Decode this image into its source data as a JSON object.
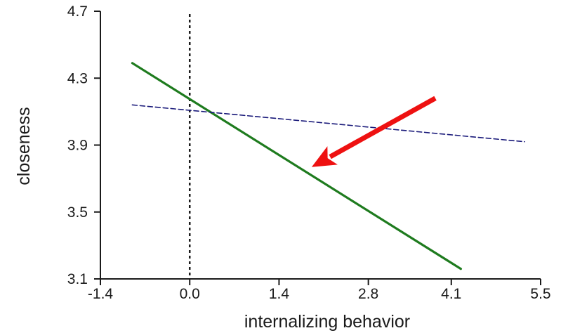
{
  "chart_data": {
    "type": "line",
    "xlabel": "internalizing behavior",
    "ylabel": "closeness",
    "xlim": [
      -1.4,
      5.5
    ],
    "ylim": [
      3.1,
      4.7
    ],
    "xticks": [
      -1.4,
      0.0,
      1.4,
      2.8,
      4.1,
      5.5
    ],
    "xtick_labels": [
      "-1.4",
      "0.0",
      "1.4",
      "2.8",
      "4.1",
      "5.5"
    ],
    "yticks": [
      3.1,
      3.5,
      3.9,
      4.3,
      4.7
    ],
    "ytick_labels": [
      "3.1",
      "3.5",
      "3.9",
      "4.3",
      "4.7"
    ],
    "grid": false,
    "series": [
      {
        "style": "solid",
        "color": "#1e7b1e",
        "x": [
          -0.9,
          4.25
        ],
        "y": [
          4.39,
          3.16
        ]
      },
      {
        "style": "dashed",
        "color": "#1a1a7a",
        "x": [
          -0.9,
          5.25
        ],
        "y": [
          4.14,
          3.92
        ]
      }
    ],
    "reference_line": {
      "x": 0.0,
      "style": "dotted",
      "color": "#1a1a1a"
    },
    "annotation": {
      "type": "arrow",
      "color": "#ee1111",
      "from": [
        3.85,
        4.18
      ],
      "to": [
        2.2,
        3.83
      ]
    }
  }
}
